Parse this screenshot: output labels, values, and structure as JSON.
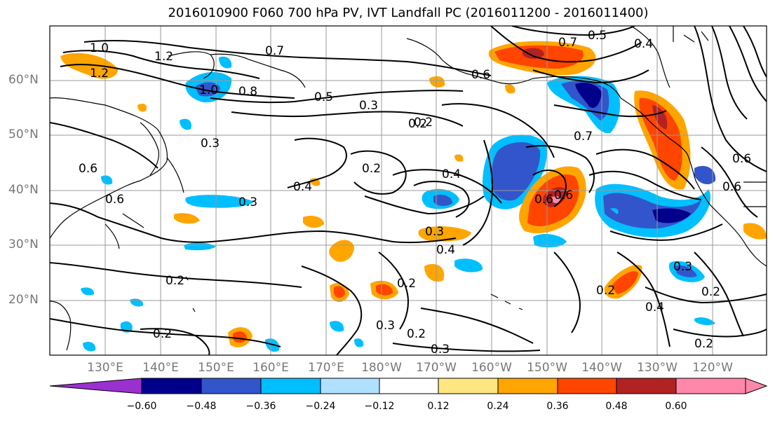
{
  "title": "2016010900 F060 700 hPa PV, IVT Landfall PC (2016011200 - 2016011400)",
  "lat_labels": [
    "60°N",
    "50°N",
    "40°N",
    "30°N",
    "20°N"
  ],
  "lon_labels": [
    "130°E",
    "140°E",
    "150°E",
    "160°E",
    "170°E",
    "180°W",
    "170°W",
    "160°W",
    "150°W",
    "140°W",
    "130°W",
    "120°W"
  ],
  "colorbar": {
    "ticks": [
      "−0.60",
      "−0.48",
      "−0.36",
      "−0.24",
      "−0.12",
      "0.12",
      "0.24",
      "0.36",
      "0.48",
      "0.60"
    ],
    "colors": [
      "#9b30d0",
      "#00008b",
      "#3355cc",
      "#00bfff",
      "#b0e0ff",
      "#ffffff",
      "#ffe680",
      "#ffa500",
      "#ff4500",
      "#b22222",
      "#ff88aa"
    ]
  },
  "contour_labels": [
    "1.0",
    "1.2",
    "1.2",
    "0.7",
    "1.0",
    "0.8",
    "0.5",
    "0.3",
    "0.2",
    "0.3",
    "0.6",
    "0.6",
    "0.4",
    "0.3",
    "0.2",
    "0.4",
    "0.3",
    "0.4",
    "0.2",
    "0.2",
    "0.2",
    "0.3",
    "0.2",
    "0.3",
    "0.2",
    "0.7",
    "0.5",
    "0.4",
    "0.6",
    "0.7",
    "0.6",
    "0.6",
    "0.2",
    "0.4",
    "0.2",
    "0.3",
    "0.2",
    "0.6",
    "0.6"
  ],
  "colors": {
    "coast": "#000000",
    "grid": "#999999",
    "contour": "#000000"
  }
}
